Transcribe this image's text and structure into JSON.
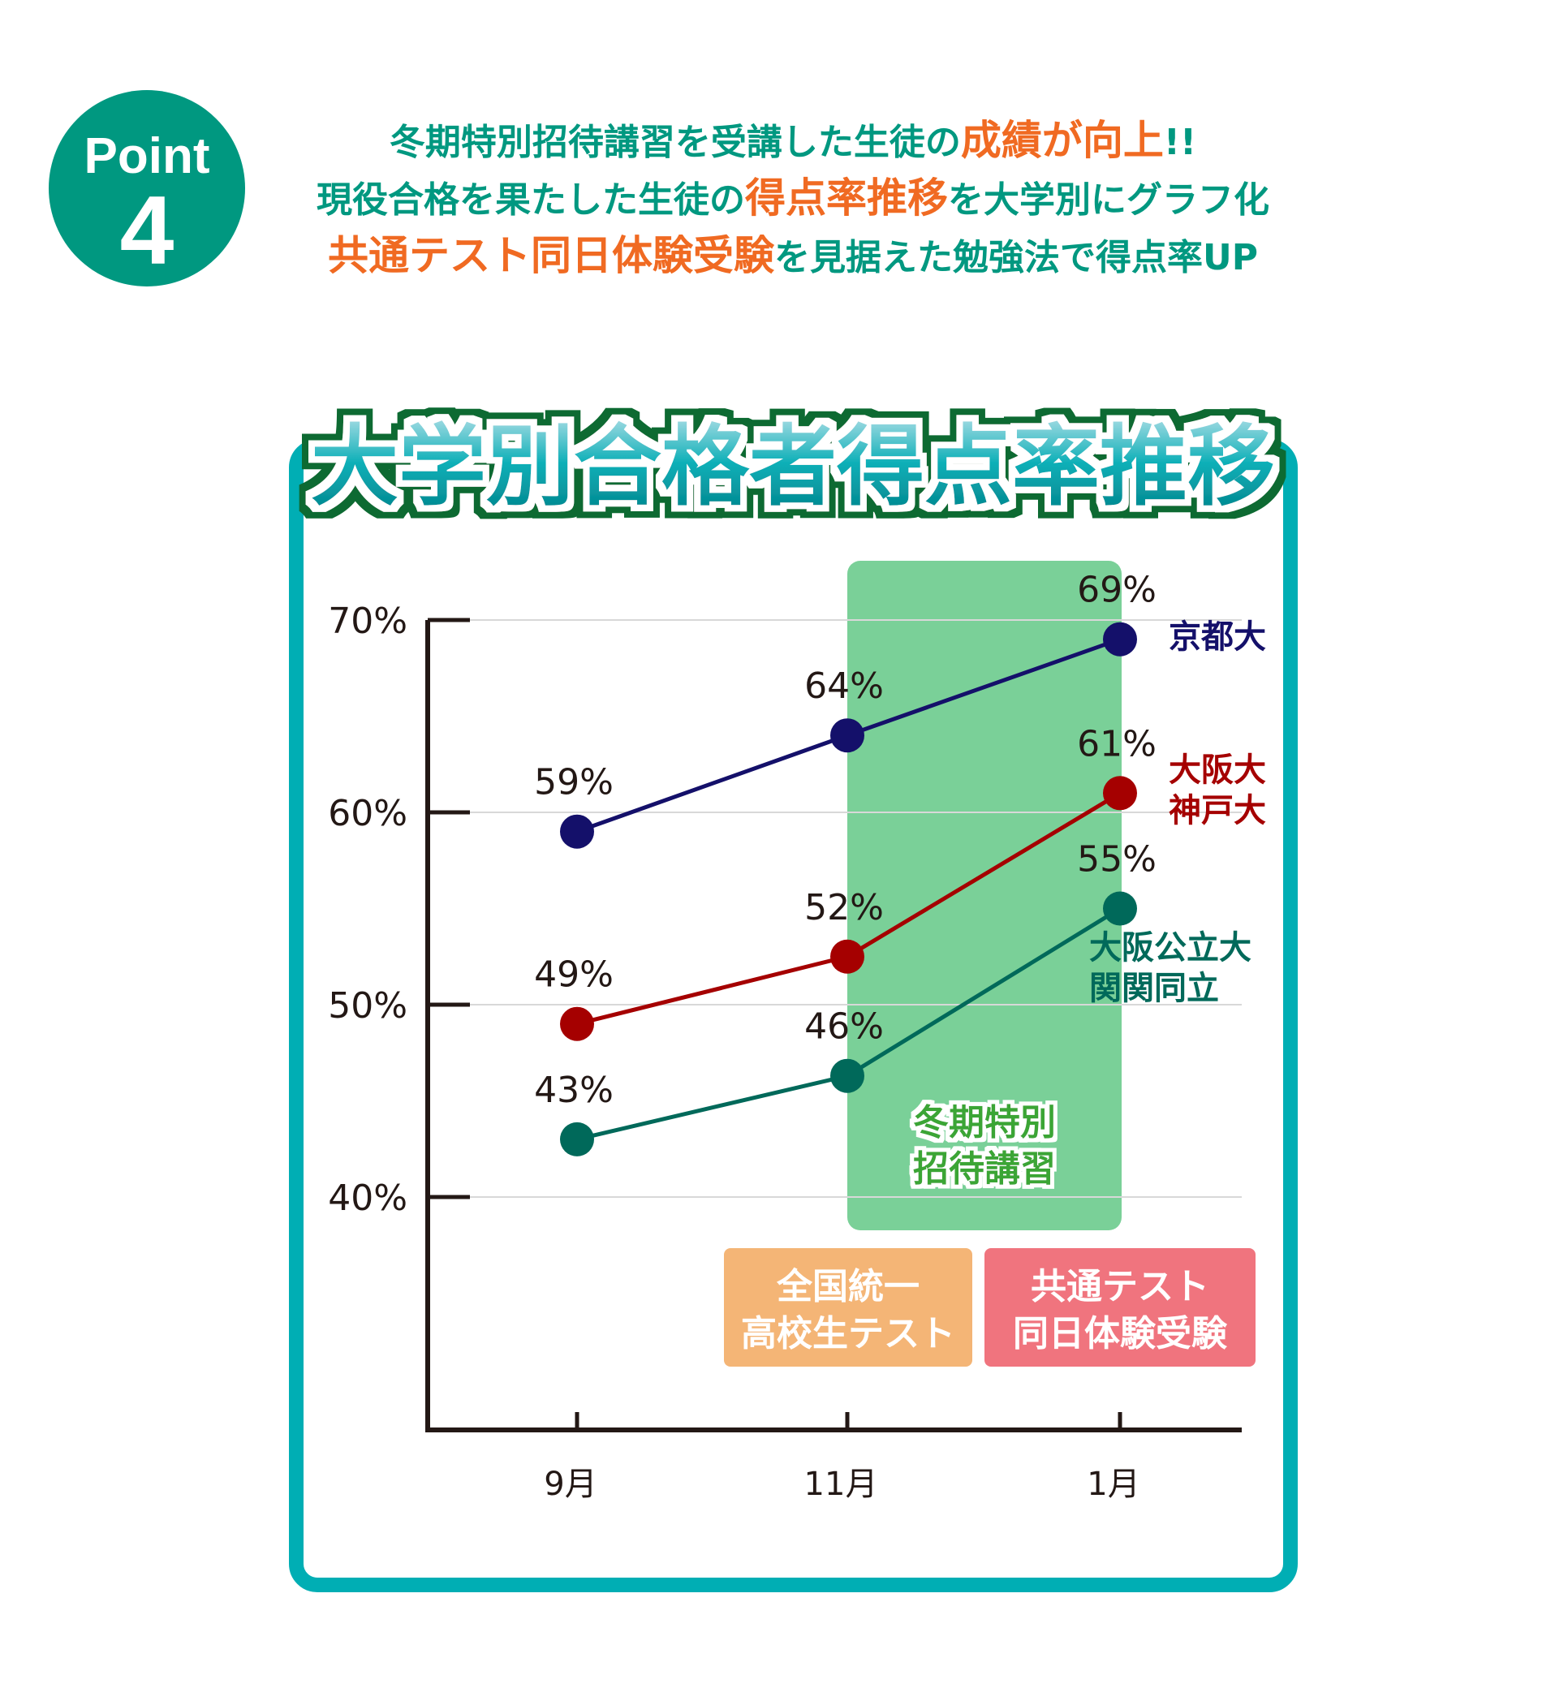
{
  "badge": {
    "word": "Point",
    "number": "4"
  },
  "header": {
    "lines": [
      [
        {
          "text": "冬期特別招待講習を受講した生徒の",
          "emphasis": false
        },
        {
          "text": "成績が向上",
          "emphasis": true
        },
        {
          "text": "!!",
          "emphasis": false
        }
      ],
      [
        {
          "text": "現役合格を果たした生徒の",
          "emphasis": false
        },
        {
          "text": "得点率推移",
          "emphasis": true
        },
        {
          "text": "を大学別にグラフ化",
          "emphasis": false
        }
      ],
      [
        {
          "text": "共通テスト同日体験受験",
          "emphasis": true
        },
        {
          "text": "を見据えた勉強法で得点率UP",
          "emphasis": false
        }
      ]
    ]
  },
  "colors": {
    "teal": "#009880",
    "orange": "#f06a22",
    "frame": "#00aeb4",
    "title_outline": "#0b6a30",
    "highlight": "#7ad098",
    "highlight_text": "#3aa535",
    "box_orange": "#f4b576",
    "box_pink": "#f0747e"
  },
  "chart_data": {
    "type": "line",
    "title": "大学別合格者得点率推移",
    "categories": [
      "9月",
      "11月",
      "1月"
    ],
    "yticks": [
      "40%",
      "50%",
      "60%",
      "70%"
    ],
    "ylim": [
      40,
      70
    ],
    "grid": true,
    "series": [
      {
        "name": "京都大",
        "values": [
          59,
          64,
          69
        ],
        "labels": [
          "59%",
          "64%",
          "69%"
        ],
        "color": "#14106a"
      },
      {
        "name": "大阪大\n神戸大",
        "name_lines": [
          "大阪大",
          "神戸大"
        ],
        "values": [
          49,
          52.5,
          61
        ],
        "labels": [
          "49%",
          "52%",
          "61%"
        ],
        "color": "#a50000"
      },
      {
        "name": "大阪公立大\n関関同立",
        "name_lines": [
          "大阪公立大",
          "関関同立"
        ],
        "values": [
          43,
          46.3,
          55
        ],
        "labels": [
          "43%",
          "46%",
          "55%"
        ],
        "color": "#00695a"
      }
    ],
    "annotations": {
      "highlight": {
        "lines": [
          "冬期特別",
          "招待講習"
        ],
        "span": [
          "11月",
          "1月"
        ]
      },
      "boxes": [
        {
          "lines": [
            "全国統一",
            "高校生テスト"
          ],
          "month": "11月"
        },
        {
          "lines": [
            "共通テスト",
            "同日体験受験"
          ],
          "month": "1月"
        }
      ]
    }
  }
}
